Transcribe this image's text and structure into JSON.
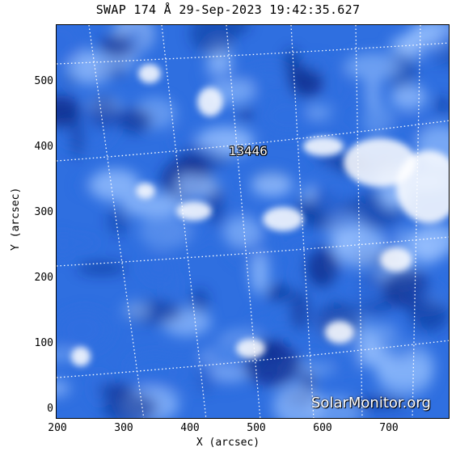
{
  "title": "SWAP 174 Å 29-Sep-2023 19:42:35.627",
  "axes": {
    "xlabel": "X (arcsec)",
    "ylabel": "Y (arcsec)",
    "xticks": [
      "200",
      "300",
      "400",
      "500",
      "600",
      "700"
    ],
    "yticks": [
      "0",
      "100",
      "200",
      "300",
      "400",
      "500"
    ]
  },
  "annotations": {
    "region_label": "13446",
    "watermark": "SolarMonitor.org"
  },
  "colors": {
    "dark": "#0a2a8a",
    "mid": "#2f6fe0",
    "light": "#9cc4ff",
    "bright": "#ffffff"
  }
}
